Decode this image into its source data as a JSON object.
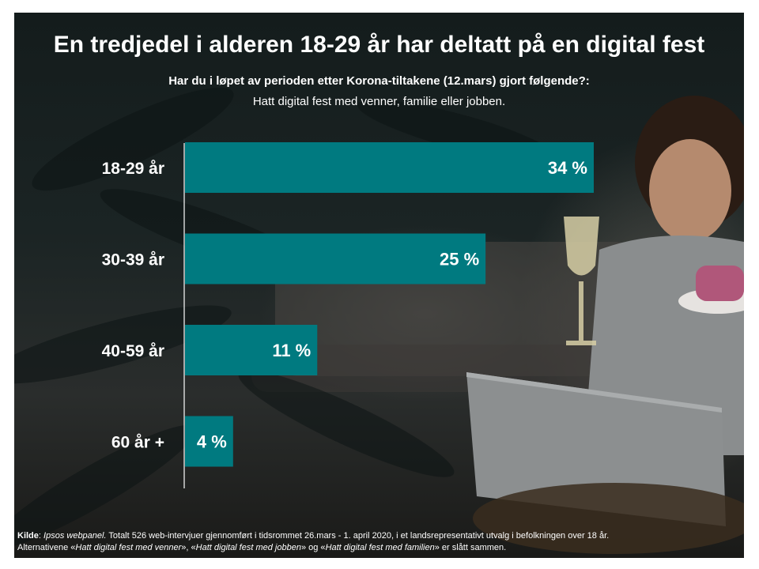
{
  "title": "En tredjedel i alderen 18-29 år har deltatt på en digital fest",
  "question": "Har du i løpet av perioden etter Korona-tiltakene (12.mars) gjort følgende?:",
  "subtitle": "Hatt digital fest med venner, familie eller jobben.",
  "colors": {
    "bar": "#007a80",
    "text": "#ffffff"
  },
  "chart_data": {
    "type": "bar",
    "orientation": "horizontal",
    "categories": [
      "18-29 år",
      "30-39 år",
      "40-59 år",
      "60 år +"
    ],
    "values": [
      34,
      25,
      11,
      4
    ],
    "data_labels": [
      "34 %",
      "25 %",
      "11 %",
      "4 %"
    ],
    "xlim": [
      0,
      34
    ],
    "unit": "%",
    "grid": false,
    "legend": "none"
  },
  "footnote": {
    "source_label": "Kilde",
    "colon": ": ",
    "source_name": "Ipsos webpanel.",
    "line1_rest": " Totalt 526 web-intervjuer gjennomført i tidsrommet 26.mars - 1. april 2020, i et landsrepresentativt utvalg i befolkningen over 18 år.",
    "line2_prefix": "Alternativene «",
    "alt1": "Hatt digital fest med venner",
    "sep1": "», «",
    "alt2": "Hatt digital fest med jobben",
    "sep2": "» og «",
    "alt3": "Hatt digital fest med familien",
    "line2_suffix": "» er slått sammen."
  }
}
